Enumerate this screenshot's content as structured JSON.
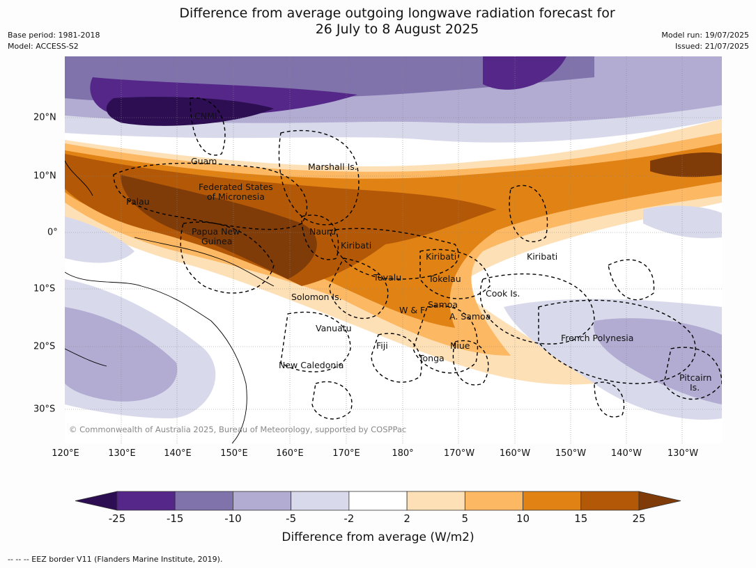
{
  "title_line1": "Difference from average outgoing longwave radiation forecast for",
  "title_line2": "26 July to 8 August 2025",
  "meta": {
    "base_period": "Base period: 1981-2018",
    "model": "Model: ACCESS-S2",
    "model_run": "Model run: 19/07/2025",
    "issued": "Issued: 21/07/2025"
  },
  "longitude_ticks": [
    "120°E",
    "130°E",
    "140°E",
    "150°E",
    "160°E",
    "170°E",
    "180°",
    "170°W",
    "160°W",
    "150°W",
    "140°W",
    "130°W"
  ],
  "latitude_ticks": [
    "20°N",
    "10°N",
    "0°",
    "10°S",
    "20°S",
    "30°S"
  ],
  "places": [
    {
      "name": "CNMI"
    },
    {
      "name": "Guam"
    },
    {
      "name": "Marshall Is."
    },
    {
      "name": "Federated States"
    },
    {
      "name": "of Micronesia"
    },
    {
      "name": "Palau"
    },
    {
      "name": "Papua New"
    },
    {
      "name": "Guinea"
    },
    {
      "name": "Nauru"
    },
    {
      "name": "Kiribati"
    },
    {
      "name": "Kiribati"
    },
    {
      "name": "Kiribati"
    },
    {
      "name": "Tuvalu"
    },
    {
      "name": "Tokelau"
    },
    {
      "name": "Solomon Is."
    },
    {
      "name": "W & F"
    },
    {
      "name": "Samoa"
    },
    {
      "name": "A. Samoa"
    },
    {
      "name": "Cook Is."
    },
    {
      "name": "Vanuatu"
    },
    {
      "name": "Fiji"
    },
    {
      "name": "Niue"
    },
    {
      "name": "Tonga"
    },
    {
      "name": "New Caledonia"
    },
    {
      "name": "French Polynesia"
    },
    {
      "name": "Pitcairn"
    },
    {
      "name": "Is."
    }
  ],
  "copyright": "© Commonwealth of Australia 2025, Bureau of Meteorology, supported by COSPPac",
  "colorbar": {
    "labels": [
      "-25",
      "-15",
      "-10",
      "-5",
      "-2",
      "2",
      "5",
      "10",
      "15",
      "25"
    ],
    "colors": [
      "#2d0e52",
      "#542788",
      "#8073ac",
      "#b2abd2",
      "#d8daeb",
      "#ffffff",
      "#fee0b6",
      "#fdb863",
      "#e08214",
      "#b35806",
      "#7f3b08"
    ],
    "title": "Difference from average (W/m2)"
  },
  "footnote": "--  --  -- EEZ border V11 (Flanders Marine Institute, 2019)."
}
